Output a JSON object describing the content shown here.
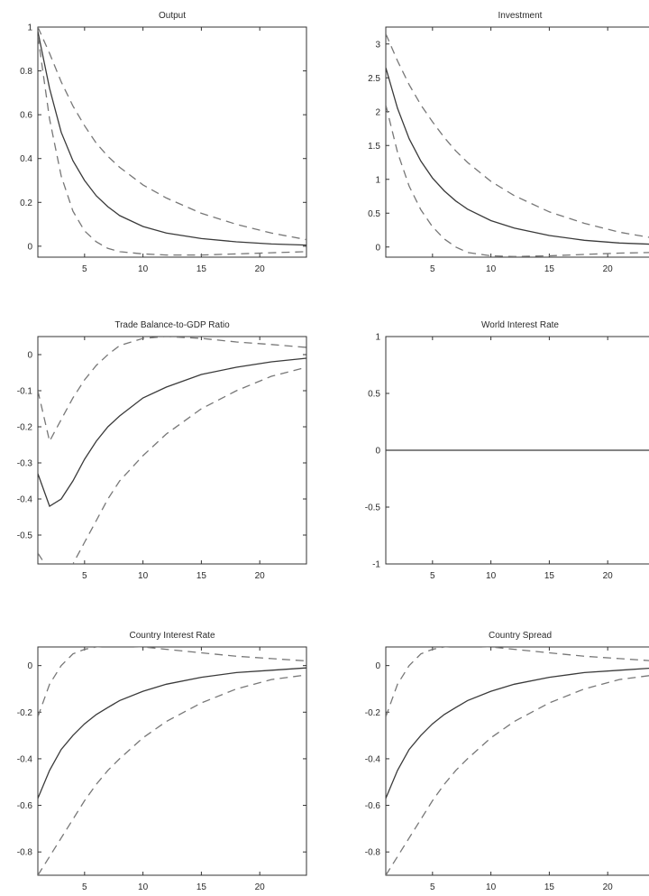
{
  "chart_data": [
    {
      "type": "line",
      "title": "Output",
      "xlim": [
        1,
        24
      ],
      "ylim": [
        -0.05,
        1.0
      ],
      "xticks": [
        5,
        10,
        15,
        20
      ],
      "yticks": [
        0,
        0.2,
        0.4,
        0.6,
        0.8,
        1
      ],
      "ytick_labels": [
        "0",
        "0.2",
        "0.4",
        "0.6",
        "0.8",
        "1"
      ],
      "x": [
        1,
        2,
        3,
        4,
        5,
        6,
        7,
        8,
        10,
        12,
        15,
        18,
        21,
        24
      ],
      "series": [
        {
          "style": "solid",
          "values": [
            0.98,
            0.72,
            0.52,
            0.39,
            0.3,
            0.23,
            0.18,
            0.14,
            0.09,
            0.06,
            0.035,
            0.02,
            0.01,
            0.005
          ]
        },
        {
          "style": "dashed",
          "values": [
            1.0,
            0.88,
            0.75,
            0.64,
            0.55,
            0.47,
            0.41,
            0.36,
            0.28,
            0.22,
            0.15,
            0.1,
            0.06,
            0.03
          ]
        },
        {
          "style": "dashed",
          "values": [
            0.96,
            0.58,
            0.32,
            0.16,
            0.07,
            0.02,
            -0.01,
            -0.025,
            -0.035,
            -0.04,
            -0.04,
            -0.035,
            -0.03,
            -0.025
          ]
        }
      ]
    },
    {
      "type": "line",
      "title": "Investment",
      "xlim": [
        1,
        24
      ],
      "ylim": [
        -0.15,
        3.25
      ],
      "xticks": [
        5,
        10,
        15,
        20
      ],
      "yticks": [
        0,
        0.5,
        1,
        1.5,
        2,
        2.5,
        3
      ],
      "ytick_labels": [
        "0",
        "0.5",
        "1",
        "1.5",
        "2",
        "2.5",
        "3"
      ],
      "x": [
        1,
        2,
        3,
        4,
        5,
        6,
        7,
        8,
        10,
        12,
        15,
        18,
        21,
        24
      ],
      "series": [
        {
          "style": "solid",
          "values": [
            2.65,
            2.05,
            1.6,
            1.27,
            1.02,
            0.83,
            0.68,
            0.56,
            0.39,
            0.28,
            0.17,
            0.1,
            0.06,
            0.04
          ]
        },
        {
          "style": "dashed",
          "values": [
            3.15,
            2.75,
            2.4,
            2.1,
            1.85,
            1.62,
            1.42,
            1.25,
            0.97,
            0.76,
            0.52,
            0.35,
            0.22,
            0.13
          ]
        },
        {
          "style": "dashed",
          "values": [
            2.1,
            1.4,
            0.9,
            0.55,
            0.3,
            0.12,
            0.0,
            -0.08,
            -0.13,
            -0.14,
            -0.13,
            -0.11,
            -0.09,
            -0.08
          ]
        }
      ]
    },
    {
      "type": "line",
      "title": "Trade Balance-to-GDP Ratio",
      "xlim": [
        1,
        24
      ],
      "ylim": [
        -0.58,
        0.05
      ],
      "xticks": [
        5,
        10,
        15,
        20
      ],
      "yticks": [
        0,
        -0.1,
        -0.2,
        -0.3,
        -0.4,
        -0.5
      ],
      "ytick_labels": [
        "0",
        "-0.1",
        "-0.2",
        "-0.3",
        "-0.4",
        "-0.5"
      ],
      "x": [
        1,
        2,
        3,
        4,
        5,
        6,
        7,
        8,
        10,
        12,
        15,
        18,
        21,
        24
      ],
      "series": [
        {
          "style": "solid",
          "values": [
            -0.33,
            -0.42,
            -0.4,
            -0.35,
            -0.29,
            -0.24,
            -0.2,
            -0.17,
            -0.12,
            -0.09,
            -0.055,
            -0.035,
            -0.02,
            -0.01
          ]
        },
        {
          "style": "dashed",
          "values": [
            -0.1,
            -0.24,
            -0.18,
            -0.12,
            -0.07,
            -0.03,
            0.0,
            0.025,
            0.045,
            0.05,
            0.045,
            0.035,
            0.028,
            0.02
          ]
        },
        {
          "style": "dashed",
          "values": [
            -0.55,
            -0.6,
            -0.6,
            -0.58,
            -0.52,
            -0.46,
            -0.4,
            -0.35,
            -0.28,
            -0.22,
            -0.15,
            -0.1,
            -0.06,
            -0.035
          ]
        }
      ]
    },
    {
      "type": "line",
      "title": "World Interest Rate",
      "xlim": [
        1,
        24
      ],
      "ylim": [
        -1,
        1
      ],
      "xticks": [
        5,
        10,
        15,
        20
      ],
      "yticks": [
        1,
        0.5,
        0,
        -0.5,
        -1
      ],
      "ytick_labels": [
        "1",
        "0.5",
        "0",
        "-0.5",
        "-1"
      ],
      "x": [
        1,
        24
      ],
      "series": [
        {
          "style": "solid",
          "values": [
            0,
            0
          ]
        }
      ]
    },
    {
      "type": "line",
      "title": "Country Interest Rate",
      "xlim": [
        1,
        24
      ],
      "ylim": [
        -0.9,
        0.08
      ],
      "xticks": [
        5,
        10,
        15,
        20
      ],
      "yticks": [
        0,
        -0.2,
        -0.4,
        -0.6,
        -0.8
      ],
      "ytick_labels": [
        "0",
        "-0.2",
        "-0.4",
        "-0.6",
        "-0.8"
      ],
      "x": [
        1,
        2,
        3,
        4,
        5,
        6,
        7,
        8,
        10,
        12,
        15,
        18,
        21,
        24
      ],
      "series": [
        {
          "style": "solid",
          "values": [
            -0.57,
            -0.45,
            -0.36,
            -0.3,
            -0.25,
            -0.21,
            -0.18,
            -0.15,
            -0.11,
            -0.08,
            -0.05,
            -0.03,
            -0.02,
            -0.01
          ]
        },
        {
          "style": "dashed",
          "values": [
            -0.22,
            -0.08,
            0.0,
            0.05,
            0.07,
            0.08,
            0.085,
            0.085,
            0.08,
            0.07,
            0.055,
            0.04,
            0.03,
            0.02
          ]
        },
        {
          "style": "dashed",
          "values": [
            -0.9,
            -0.82,
            -0.74,
            -0.66,
            -0.58,
            -0.51,
            -0.45,
            -0.4,
            -0.31,
            -0.24,
            -0.16,
            -0.1,
            -0.06,
            -0.04
          ]
        }
      ]
    },
    {
      "type": "line",
      "title": "Country Spread",
      "xlim": [
        1,
        24
      ],
      "ylim": [
        -0.9,
        0.08
      ],
      "xticks": [
        5,
        10,
        15,
        20
      ],
      "yticks": [
        0,
        -0.2,
        -0.4,
        -0.6,
        -0.8
      ],
      "ytick_labels": [
        "0",
        "-0.2",
        "-0.4",
        "-0.6",
        "-0.8"
      ],
      "x": [
        1,
        2,
        3,
        4,
        5,
        6,
        7,
        8,
        10,
        12,
        15,
        18,
        21,
        24
      ],
      "series": [
        {
          "style": "solid",
          "values": [
            -0.57,
            -0.45,
            -0.36,
            -0.3,
            -0.25,
            -0.21,
            -0.18,
            -0.15,
            -0.11,
            -0.08,
            -0.05,
            -0.03,
            -0.02,
            -0.01
          ]
        },
        {
          "style": "dashed",
          "values": [
            -0.22,
            -0.08,
            0.0,
            0.05,
            0.07,
            0.08,
            0.085,
            0.085,
            0.08,
            0.07,
            0.055,
            0.04,
            0.03,
            0.02
          ]
        },
        {
          "style": "dashed",
          "values": [
            -0.9,
            -0.82,
            -0.74,
            -0.66,
            -0.58,
            -0.51,
            -0.45,
            -0.4,
            -0.31,
            -0.24,
            -0.16,
            -0.1,
            -0.06,
            -0.04
          ]
        }
      ]
    }
  ]
}
